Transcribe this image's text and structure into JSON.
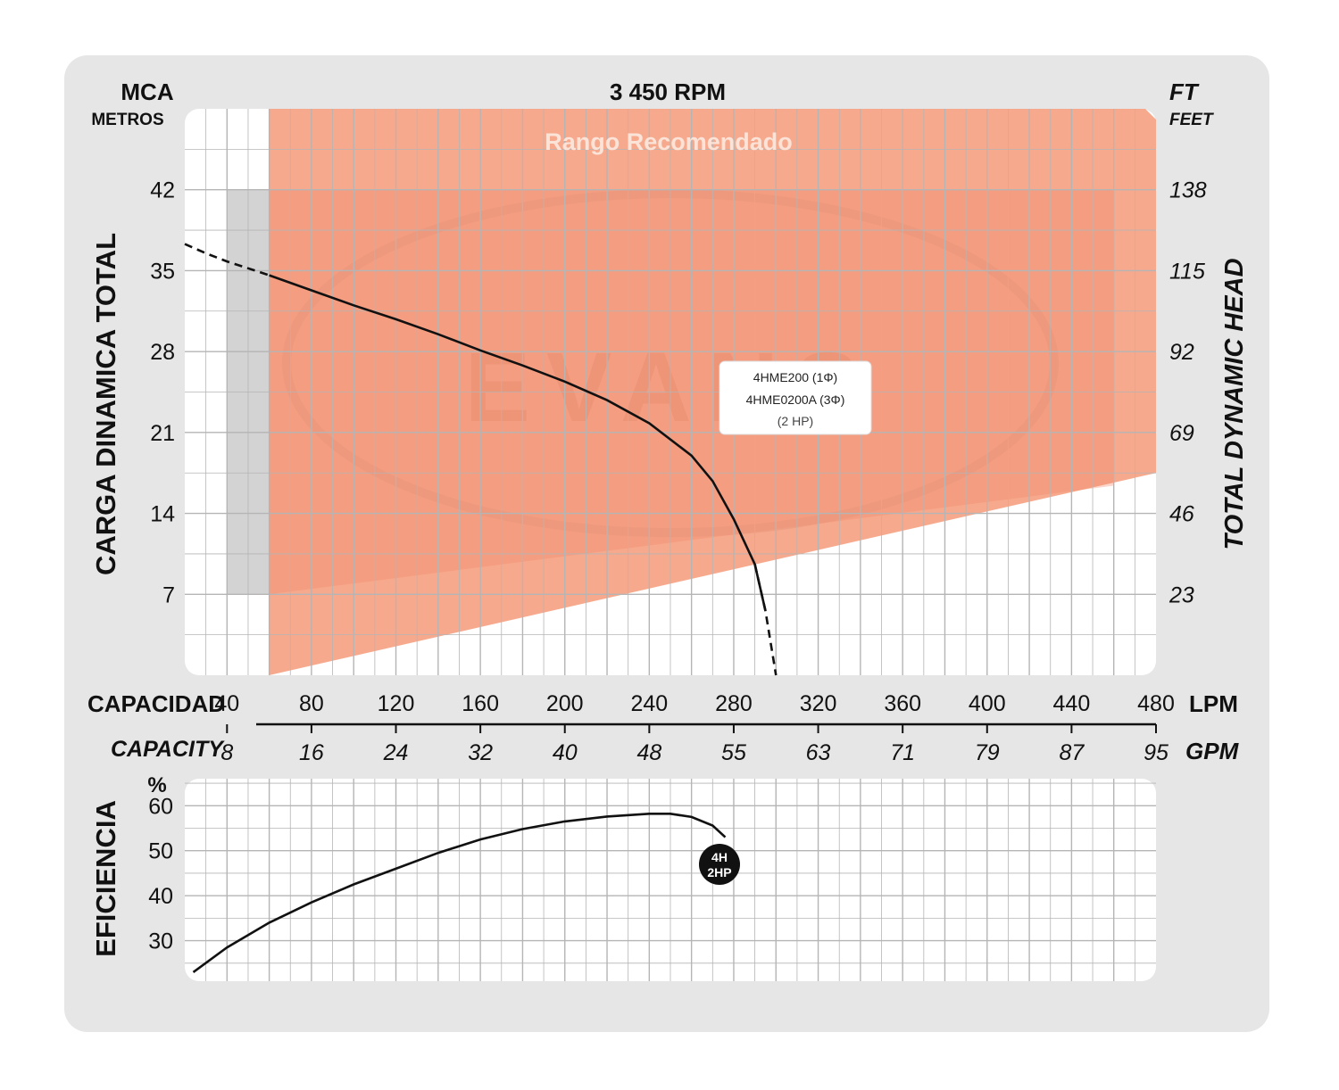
{
  "chart_data": [
    {
      "type": "line",
      "title": "3 450 RPM",
      "left_axis": {
        "unit": "MCA",
        "sub": "METROS",
        "label": "CARGA  DINAMICA  TOTAL",
        "ticks": [
          7,
          14,
          21,
          28,
          35,
          42
        ],
        "ylim": [
          0,
          49
        ]
      },
      "right_axis": {
        "unit": "FT",
        "sub": "FEET",
        "label": "TOTAL  DYNAMIC  HEAD",
        "ticks": [
          23,
          46,
          69,
          92,
          115,
          138
        ]
      },
      "x_axis_lpm": {
        "label": "CAPACIDAD",
        "unit": "LPM",
        "ticks": [
          40,
          80,
          120,
          160,
          200,
          240,
          280,
          320,
          360,
          400,
          440,
          480
        ],
        "xlim": [
          20,
          480
        ]
      },
      "x_axis_gpm": {
        "label": "CAPACITY",
        "unit": "GPM",
        "ticks": [
          "8",
          "16",
          "24",
          "32",
          "40",
          "48",
          "55",
          "63",
          "71",
          "79",
          "87",
          "95"
        ]
      },
      "recommended_range_label": "Rango Recomendado",
      "recommended_range": {
        "x_start": 60,
        "floor_left": 0,
        "floor_right": 17.5
      },
      "watermark": "EVANS",
      "series": [
        {
          "name": "4HME200 (1Φ) 4HME0200A (3Φ) (2 HP)",
          "points": [
            [
              20,
              37.3
            ],
            [
              30,
              36.5
            ],
            [
              40,
              35.8
            ],
            [
              50,
              35.2
            ],
            [
              60,
              34.6
            ],
            [
              80,
              33.3
            ],
            [
              100,
              32
            ],
            [
              120,
              30.8
            ],
            [
              140,
              29.5
            ],
            [
              160,
              28.1
            ],
            [
              180,
              26.8
            ],
            [
              200,
              25.4
            ],
            [
              220,
              23.8
            ],
            [
              240,
              21.8
            ],
            [
              260,
              19
            ],
            [
              270,
              16.8
            ],
            [
              280,
              13.5
            ],
            [
              290,
              9.6
            ],
            [
              295,
              5.6
            ],
            [
              300,
              0
            ]
          ],
          "dashed_before": 60,
          "dashed_after": 292
        }
      ],
      "curve_label": {
        "line1": "4HME200 (1Φ)",
        "line2": "4HME0200A (3Φ)",
        "line3": "(2 HP)"
      },
      "colors": {
        "range": "#f7a98d",
        "range_dark": "#f2866a",
        "curve": "#111111",
        "grid": "#b5b5b5"
      }
    },
    {
      "type": "line",
      "y_unit": "%",
      "label": "EFICIENCIA",
      "ticks": [
        30,
        40,
        50,
        60
      ],
      "ylim": [
        21,
        66
      ],
      "xlim": [
        20,
        480
      ],
      "series": [
        {
          "name": "4H 2HP",
          "points": [
            [
              24,
              23
            ],
            [
              40,
              28.5
            ],
            [
              60,
              34
            ],
            [
              80,
              38.5
            ],
            [
              100,
              42.5
            ],
            [
              120,
              46
            ],
            [
              140,
              49.5
            ],
            [
              160,
              52.5
            ],
            [
              180,
              54.8
            ],
            [
              200,
              56.5
            ],
            [
              220,
              57.6
            ],
            [
              240,
              58.2
            ],
            [
              250,
              58.2
            ],
            [
              260,
              57.5
            ],
            [
              270,
              55.6
            ],
            [
              276,
              53
            ]
          ]
        }
      ],
      "marker": {
        "line1": "4H",
        "line2": "2HP"
      }
    }
  ]
}
